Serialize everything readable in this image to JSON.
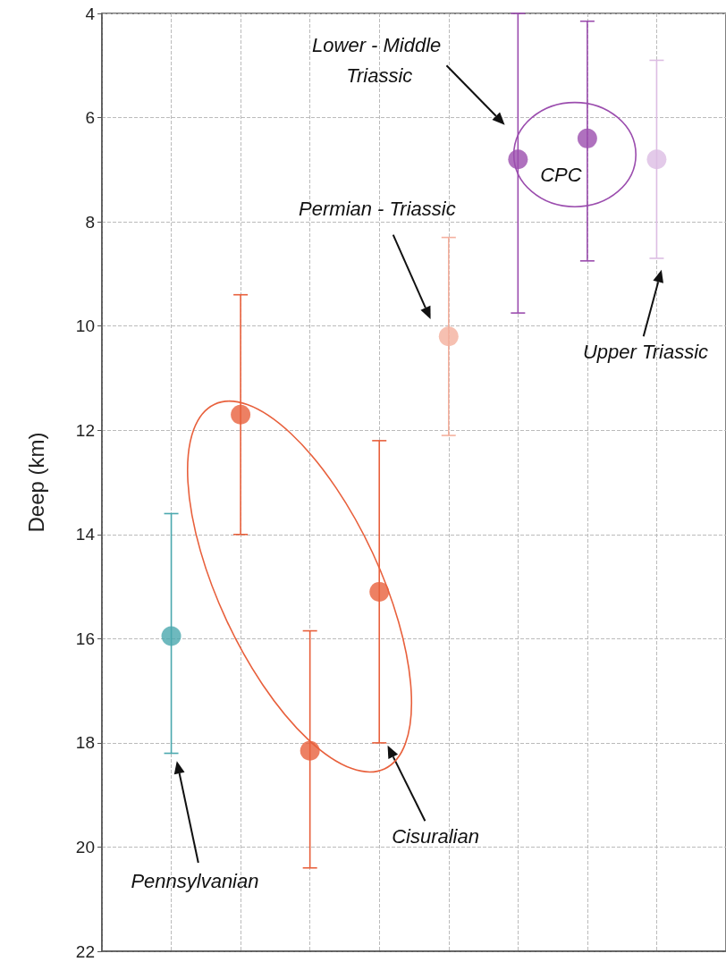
{
  "chart_data": {
    "type": "scatter",
    "ylabel": "Deep (km)",
    "categories": [
      null,
      null,
      null,
      null,
      null,
      null,
      null,
      null,
      null,
      null
    ],
    "values": [
      null,
      15.95,
      11.7,
      18.15,
      15.1,
      10.2,
      6.8,
      6.4,
      6.8,
      null
    ],
    "colors": [
      null,
      "#4aa8ae",
      "#e8603c",
      "#e8603c",
      "#e8603c",
      "#f4b09e",
      "#9b4dae",
      "#9b4dae",
      "#dcbde3",
      null
    ],
    "errors": [
      null,
      [
        13.6,
        18.2
      ],
      [
        9.4,
        14.0
      ],
      [
        15.85,
        20.4
      ],
      [
        12.2,
        18.0
      ],
      [
        8.3,
        12.1
      ],
      [
        4.0,
        9.75
      ],
      [
        4.15,
        8.75
      ],
      [
        4.9,
        8.7
      ],
      null
    ],
    "ylim": [
      22,
      4
    ],
    "yticks": [
      4,
      6,
      8,
      10,
      12,
      14,
      16,
      18,
      20,
      22
    ],
    "grid": true,
    "marker": "circle",
    "tick_labels": "y",
    "annotations": [
      "Lower - Middle Triassic",
      "CPC",
      "Permian - Triassic",
      "Upper Triassic",
      "Pennsylvanian",
      "Cisuralian"
    ]
  }
}
